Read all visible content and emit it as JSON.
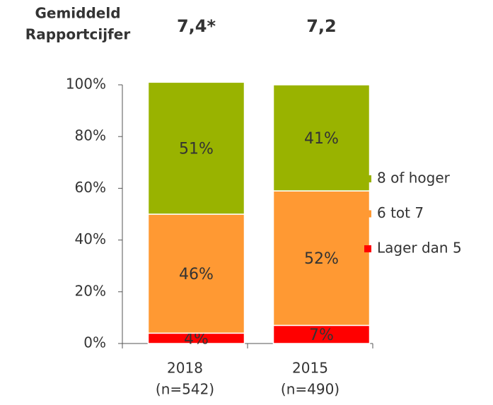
{
  "chart_data": {
    "type": "stacked_bar",
    "header": {
      "label": [
        "Gemiddeld",
        "Rapportcijfer"
      ],
      "scores": [
        "7,4*",
        "7,2"
      ]
    },
    "categories": [
      "2018",
      "2015"
    ],
    "category_notes": [
      "(n=542)",
      "(n=490)"
    ],
    "series": [
      {
        "name": "Lager dan 5",
        "color": "#ff0000",
        "values": [
          4,
          7
        ],
        "value_labels": [
          "4%",
          "7%"
        ]
      },
      {
        "name": "6 tot 7",
        "color": "#ff9933",
        "values": [
          46,
          52
        ],
        "value_labels": [
          "46%",
          "52%"
        ]
      },
      {
        "name": "8 of hoger",
        "color": "#99b300",
        "values": [
          51,
          41
        ],
        "value_labels": [
          "51%",
          "41%"
        ]
      }
    ],
    "ylim": [
      0,
      100
    ],
    "yticks": [
      {
        "value": 0,
        "label": "0%"
      },
      {
        "value": 20,
        "label": "20%"
      },
      {
        "value": 40,
        "label": "40%"
      },
      {
        "value": 60,
        "label": "60%"
      },
      {
        "value": 80,
        "label": "80%"
      },
      {
        "value": 100,
        "label": "100%"
      }
    ],
    "legend": "right"
  }
}
